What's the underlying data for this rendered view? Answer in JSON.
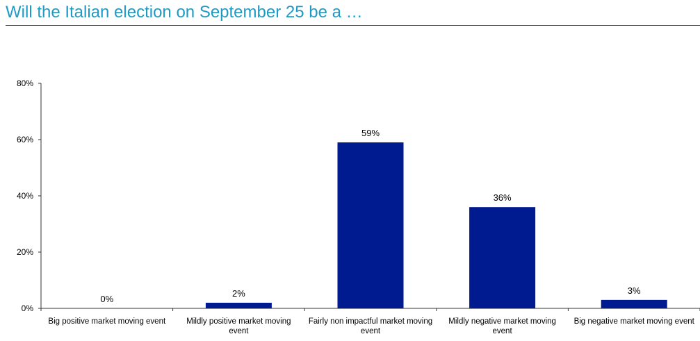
{
  "title": "Will the Italian election on September 25 be a …",
  "colors": {
    "title": "#1e9ac6",
    "bar": "#001a8f",
    "axis": "#333333"
  },
  "chart_data": {
    "type": "bar",
    "categories": [
      "Big positive market moving event",
      "Mildly positive market moving event",
      "Fairly non impactful market moving event",
      "Mildly negative market moving event",
      "Big negative market moving event"
    ],
    "category_lines": [
      [
        "Big positive market moving event"
      ],
      [
        "Mildly positive market moving",
        "event"
      ],
      [
        "Fairly non impactful market moving",
        "event"
      ],
      [
        "Mildly negative market moving",
        "event"
      ],
      [
        "Big negative market moving event"
      ]
    ],
    "values": [
      0,
      2,
      59,
      36,
      3
    ],
    "data_labels": [
      "0%",
      "2%",
      "59%",
      "36%",
      "3%"
    ],
    "ylim": [
      0,
      80
    ],
    "yticks": [
      0,
      20,
      40,
      60,
      80
    ],
    "ytick_labels": [
      "0%",
      "20%",
      "40%",
      "60%",
      "80%"
    ],
    "xlabel": "",
    "ylabel": "",
    "grid": false,
    "legend": "none"
  }
}
